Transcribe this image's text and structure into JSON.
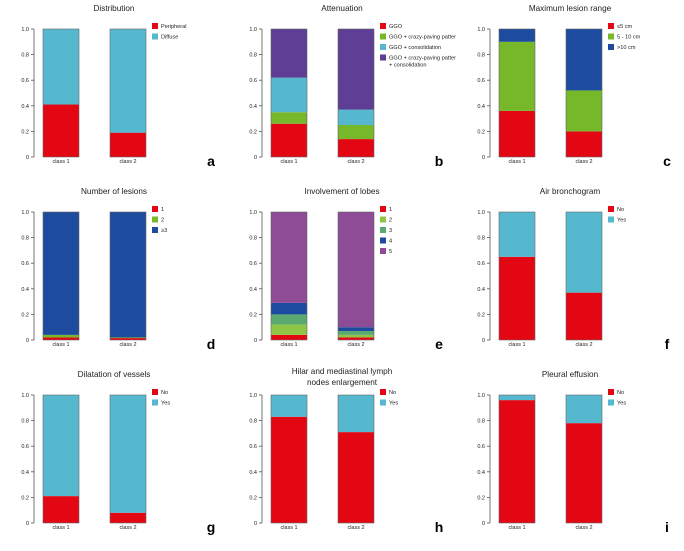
{
  "colors": {
    "red": "#e30613",
    "cyan": "#55b8ce",
    "green": "#76b82a",
    "purple": "#5e3f95",
    "blue": "#1d4b9d",
    "lightgreen": "#8fc447",
    "mediumgreen": "#5aaa70",
    "magenta": "#8e4b96"
  },
  "chart_data": [
    {
      "id": "a",
      "type": "bar",
      "stacked": true,
      "title": "Distribution",
      "panel_label": "a",
      "categories": [
        "class 1",
        "class 2"
      ],
      "ylim": [
        0,
        1.0
      ],
      "yticks": [
        "0",
        "0.2",
        "0.4",
        "0.6",
        "0.8",
        "1.0"
      ],
      "series": [
        {
          "name": "Peripheral",
          "color": "red",
          "values": [
            0.41,
            0.19
          ]
        },
        {
          "name": "Diffuse",
          "color": "cyan",
          "values": [
            0.59,
            0.81
          ]
        }
      ]
    },
    {
      "id": "b",
      "type": "bar",
      "stacked": true,
      "title": "Attenuation",
      "panel_label": "b",
      "categories": [
        "class 1",
        "class 2"
      ],
      "ylim": [
        0,
        1.0
      ],
      "yticks": [
        "0",
        "0.2",
        "0.4",
        "0.6",
        "0.8",
        "1.0"
      ],
      "series": [
        {
          "name": "GGO",
          "color": "red",
          "values": [
            0.26,
            0.14
          ]
        },
        {
          "name": "GGO + crazy-paving pattern",
          "color": "green",
          "values": [
            0.09,
            0.11
          ]
        },
        {
          "name": "GGO + consolidation",
          "color": "cyan",
          "values": [
            0.27,
            0.12
          ]
        },
        {
          "name": "GGO + crazy-paving pattern + consolidation",
          "legend_lines": [
            "GGO + crazy-paving pattern",
            "+ consolidation"
          ],
          "color": "purple",
          "values": [
            0.38,
            0.63
          ]
        }
      ]
    },
    {
      "id": "c",
      "type": "bar",
      "stacked": true,
      "title": "Maximum lesion range",
      "panel_label": "c",
      "categories": [
        "class 1",
        "class 2"
      ],
      "ylim": [
        0,
        1.0
      ],
      "yticks": [
        "0",
        "0.2",
        "0.4",
        "0.6",
        "0.8",
        "1.0"
      ],
      "series": [
        {
          "name": "≤5 cm",
          "color": "red",
          "values": [
            0.36,
            0.2
          ]
        },
        {
          "name": "5 - 10 cm",
          "color": "green",
          "values": [
            0.54,
            0.32
          ]
        },
        {
          "name": ">10 cm",
          "color": "blue",
          "values": [
            0.1,
            0.48
          ]
        }
      ]
    },
    {
      "id": "d",
      "type": "bar",
      "stacked": true,
      "title": "Number of lesions",
      "panel_label": "d",
      "categories": [
        "class 1",
        "class 2"
      ],
      "ylim": [
        0,
        1.0
      ],
      "yticks": [
        "0",
        "0.2",
        "0.4",
        "0.6",
        "0.8",
        "1.0"
      ],
      "series": [
        {
          "name": "1",
          "color": "red",
          "values": [
            0.02,
            0.015
          ]
        },
        {
          "name": "2",
          "color": "green",
          "values": [
            0.02,
            0.005
          ]
        },
        {
          "name": "≥3",
          "color": "blue",
          "values": [
            0.96,
            0.98
          ]
        }
      ]
    },
    {
      "id": "e",
      "type": "bar",
      "stacked": true,
      "title": "Involvement of lobes",
      "panel_label": "e",
      "categories": [
        "class 1",
        "class 2"
      ],
      "ylim": [
        0,
        1.0
      ],
      "yticks": [
        "0",
        "0.2",
        "0.4",
        "0.6",
        "0.8",
        "1.0"
      ],
      "series": [
        {
          "name": "1",
          "color": "red",
          "values": [
            0.04,
            0.02
          ]
        },
        {
          "name": "2",
          "color": "lightgreen",
          "values": [
            0.08,
            0.02
          ]
        },
        {
          "name": "3",
          "color": "mediumgreen",
          "values": [
            0.08,
            0.03
          ]
        },
        {
          "name": "4",
          "color": "blue",
          "values": [
            0.09,
            0.03
          ]
        },
        {
          "name": "5",
          "color": "magenta",
          "values": [
            0.71,
            0.9
          ]
        }
      ]
    },
    {
      "id": "f",
      "type": "bar",
      "stacked": true,
      "title": "Air bronchogram",
      "panel_label": "f",
      "categories": [
        "class 1",
        "class 2"
      ],
      "ylim": [
        0,
        1.0
      ],
      "yticks": [
        "0",
        "0.2",
        "0.4",
        "0.6",
        "0.8",
        "1.0"
      ],
      "series": [
        {
          "name": "No",
          "color": "red",
          "values": [
            0.65,
            0.37
          ]
        },
        {
          "name": "Yes",
          "color": "cyan",
          "values": [
            0.35,
            0.63
          ]
        }
      ]
    },
    {
      "id": "g",
      "type": "bar",
      "stacked": true,
      "title": "Dilatation of vessels",
      "panel_label": "g",
      "categories": [
        "class 1",
        "class 2"
      ],
      "ylim": [
        0,
        1.0
      ],
      "yticks": [
        "0",
        "0.2",
        "0.4",
        "0.6",
        "0.8",
        "1.0"
      ],
      "series": [
        {
          "name": "No",
          "color": "red",
          "values": [
            0.21,
            0.08
          ]
        },
        {
          "name": "Yes",
          "color": "cyan",
          "values": [
            0.79,
            0.92
          ]
        }
      ]
    },
    {
      "id": "h",
      "type": "bar",
      "stacked": true,
      "title": "Hilar and mediastinal lymph nodes enlargement",
      "title_lines": [
        "Hilar and mediastinal lymph",
        "nodes enlargement"
      ],
      "panel_label": "h",
      "categories": [
        "class 1",
        "class 2"
      ],
      "ylim": [
        0,
        1.0
      ],
      "yticks": [
        "0",
        "0.2",
        "0.4",
        "0.6",
        "0.8",
        "1.0"
      ],
      "series": [
        {
          "name": "No",
          "color": "red",
          "values": [
            0.83,
            0.71
          ]
        },
        {
          "name": "Yes",
          "color": "cyan",
          "values": [
            0.17,
            0.29
          ]
        }
      ]
    },
    {
      "id": "i",
      "type": "bar",
      "stacked": true,
      "title": "Pleural effusion",
      "panel_label": "i",
      "categories": [
        "class 1",
        "class 2"
      ],
      "ylim": [
        0,
        1.0
      ],
      "yticks": [
        "0",
        "0.2",
        "0.4",
        "0.6",
        "0.8",
        "1.0"
      ],
      "series": [
        {
          "name": "No",
          "color": "red",
          "values": [
            0.96,
            0.78
          ]
        },
        {
          "name": "Yes",
          "color": "cyan",
          "values": [
            0.04,
            0.22
          ]
        }
      ]
    }
  ]
}
